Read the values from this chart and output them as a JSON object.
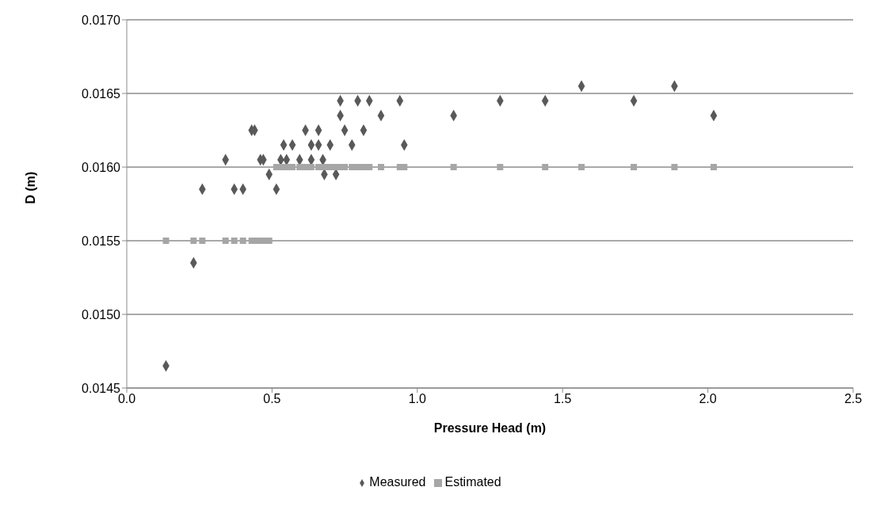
{
  "chart_data": {
    "type": "scatter",
    "xlabel": "Pressure Head (m)",
    "ylabel": "D (m)",
    "xlim": [
      0,
      2.5
    ],
    "ylim": [
      0.0145,
      0.017
    ],
    "xticks": [
      {
        "value": 0,
        "label": "0.0"
      },
      {
        "value": 0.5,
        "label": "0.5"
      },
      {
        "value": 1,
        "label": "1.0"
      },
      {
        "value": 1.5,
        "label": "1.5"
      },
      {
        "value": 2,
        "label": "2.0"
      },
      {
        "value": 2.5,
        "label": "2.5"
      }
    ],
    "yticks": [
      {
        "value": 0.0145,
        "label": "0.0145"
      },
      {
        "value": 0.015,
        "label": "0.0150"
      },
      {
        "value": 0.0155,
        "label": "0.0155"
      },
      {
        "value": 0.016,
        "label": "0.0160"
      },
      {
        "value": 0.0165,
        "label": "0.0165"
      },
      {
        "value": 0.017,
        "label": "0.0170"
      }
    ],
    "grid": "y",
    "legend": "bottom",
    "series": [
      {
        "name": "Measured",
        "color": "#595959",
        "marker": "diamond",
        "x": [
          0.135,
          0.23,
          0.26,
          0.34,
          0.37,
          0.4,
          0.43,
          0.44,
          0.46,
          0.47,
          0.49,
          0.515,
          0.53,
          0.54,
          0.55,
          0.57,
          0.595,
          0.615,
          0.635,
          0.635,
          0.66,
          0.66,
          0.675,
          0.68,
          0.7,
          0.72,
          0.735,
          0.735,
          0.75,
          0.775,
          0.795,
          0.815,
          0.835,
          0.875,
          0.94,
          0.955,
          1.125,
          1.285,
          1.44,
          1.565,
          1.745,
          1.885,
          2.02
        ],
        "values": [
          0.01465,
          0.01535,
          0.01585,
          0.01605,
          0.01585,
          0.01585,
          0.01625,
          0.01625,
          0.01605,
          0.01605,
          0.01595,
          0.01585,
          0.01605,
          0.01615,
          0.01605,
          0.01615,
          0.01605,
          0.01625,
          0.01605,
          0.01615,
          0.01615,
          0.01625,
          0.01605,
          0.01595,
          0.01615,
          0.01595,
          0.01635,
          0.01645,
          0.01625,
          0.01615,
          0.01645,
          0.01625,
          0.01645,
          0.01635,
          0.01645,
          0.01615,
          0.01635,
          0.01645,
          0.01645,
          0.01655,
          0.01645,
          0.01655,
          0.01635
        ]
      },
      {
        "name": "Estimated",
        "color": "#a6a6a6",
        "marker": "square",
        "x": [
          0.135,
          0.23,
          0.26,
          0.34,
          0.37,
          0.4,
          0.43,
          0.44,
          0.46,
          0.47,
          0.49,
          0.515,
          0.53,
          0.55,
          0.57,
          0.595,
          0.615,
          0.635,
          0.66,
          0.68,
          0.7,
          0.72,
          0.735,
          0.75,
          0.775,
          0.795,
          0.815,
          0.835,
          0.875,
          0.94,
          0.955,
          1.125,
          1.285,
          1.44,
          1.565,
          1.745,
          1.885,
          2.02
        ],
        "values": [
          0.0155,
          0.0155,
          0.0155,
          0.0155,
          0.0155,
          0.0155,
          0.0155,
          0.0155,
          0.0155,
          0.0155,
          0.0155,
          0.016,
          0.016,
          0.016,
          0.016,
          0.016,
          0.016,
          0.016,
          0.016,
          0.016,
          0.016,
          0.016,
          0.016,
          0.016,
          0.016,
          0.016,
          0.016,
          0.016,
          0.016,
          0.016,
          0.016,
          0.016,
          0.016,
          0.016,
          0.016,
          0.016,
          0.016,
          0.016
        ]
      }
    ]
  }
}
